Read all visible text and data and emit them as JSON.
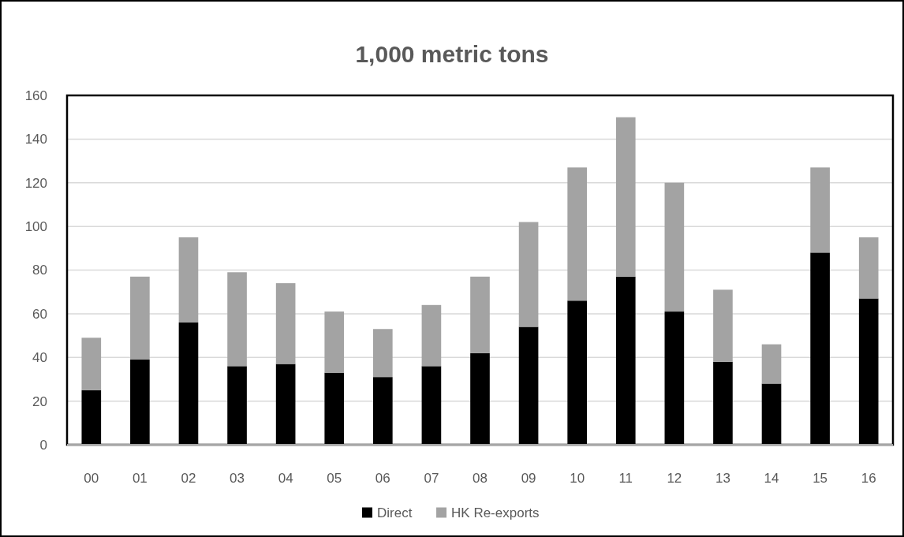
{
  "chart_data": {
    "type": "bar",
    "title": "1,000 metric tons",
    "categories": [
      "00",
      "01",
      "02",
      "03",
      "04",
      "05",
      "06",
      "07",
      "08",
      "09",
      "10",
      "11",
      "12",
      "13",
      "14",
      "15",
      "16"
    ],
    "series": [
      {
        "name": "Direct",
        "color": "#000000",
        "values": [
          25,
          39,
          56,
          36,
          37,
          33,
          31,
          36,
          42,
          54,
          66,
          77,
          61,
          38,
          28,
          88,
          67
        ]
      },
      {
        "name": "HK Re-exports",
        "color": "#a3a3a3",
        "values": [
          24,
          38,
          39,
          43,
          37,
          28,
          22,
          28,
          35,
          48,
          61,
          73,
          59,
          33,
          18,
          39,
          28
        ]
      }
    ],
    "stacked": true,
    "ylim": [
      0,
      160
    ],
    "yticks": [
      0,
      20,
      40,
      60,
      80,
      100,
      120,
      140,
      160
    ],
    "grid": "y",
    "legend": "bottom"
  }
}
